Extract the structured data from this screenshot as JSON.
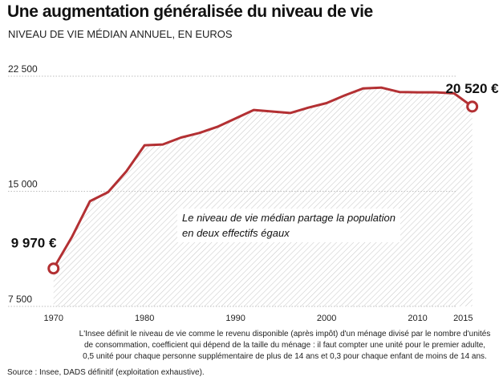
{
  "header": {
    "title": "Une augmentation généralisée du niveau de vie",
    "subtitle": "NIVEAU DE VIE MÉDIAN ANNUEL, EN EUROS"
  },
  "chart_data": {
    "type": "area",
    "title": "Une augmentation généralisée du niveau de vie",
    "subtitle": "NIVEAU DE VIE MÉDIAN ANNUEL, EN EUROS",
    "xlabel": "",
    "ylabel": "",
    "xlim": [
      1965,
      2017
    ],
    "ylim": [
      7500,
      22500
    ],
    "x_ticks": [
      1970,
      1980,
      1990,
      2000,
      2010,
      2015
    ],
    "x_tick_labels": [
      "1970",
      "1980",
      "1990",
      "2000",
      "2010",
      "2015"
    ],
    "y_ticks": [
      7500,
      15000,
      22500
    ],
    "y_tick_labels": [
      "7 500",
      "15 000",
      "22 500"
    ],
    "grid": true,
    "line_color": "#b33033",
    "fill": "hatched",
    "series": [
      {
        "x": [
          1970,
          1972,
          1974,
          1976,
          1978,
          1980,
          1982,
          1984,
          1986,
          1988,
          1990,
          1992,
          1994,
          1996,
          1998,
          2000,
          2002,
          2004,
          2006,
          2008,
          2010,
          2012,
          2014,
          2016
        ],
        "values": [
          9970,
          12000,
          14350,
          14950,
          16300,
          18000,
          18050,
          18500,
          18800,
          19200,
          19750,
          20300,
          20200,
          20100,
          20450,
          20750,
          21250,
          21700,
          21760,
          21470,
          21450,
          21450,
          21380,
          20520
        ]
      }
    ],
    "start_point": {
      "x": 1970,
      "y": 9970,
      "label": "9 970 €"
    },
    "end_point": {
      "x": 2016,
      "y": 20520,
      "label": "20 520 €"
    },
    "annotation": {
      "line1": "Le niveau de vie médian partage la population",
      "line2": "en deux effectifs égaux"
    }
  },
  "footer": {
    "note_line1": "L'Insee définit le niveau de vie comme le revenu disponible (après impôt) d'un ménage divisé par le nombre d'unités",
    "note_line2": "de consommation, coefficient qui dépend de la taille du ménage : il faut compter une unité pour le premier adulte,",
    "note_line3": "0,5 unité pour chaque personne supplémentaire de plus de 14 ans et 0,3 pour chaque enfant de moins de 14 ans.",
    "source": "Source : Insee, DADS définitif (exploitation exhaustive)."
  }
}
